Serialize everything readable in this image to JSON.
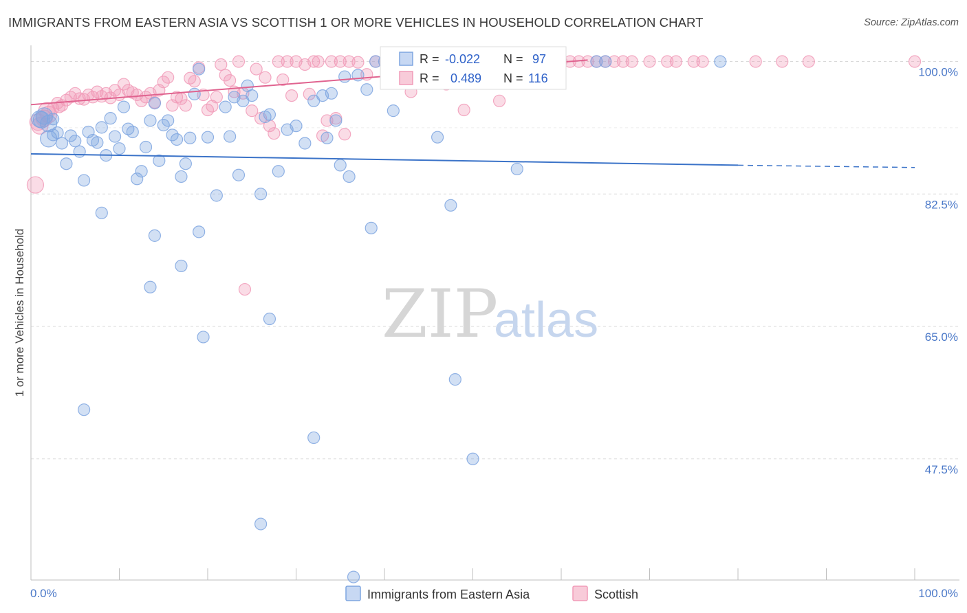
{
  "title": "IMMIGRANTS FROM EASTERN ASIA VS SCOTTISH 1 OR MORE VEHICLES IN HOUSEHOLD CORRELATION CHART",
  "source": "Source: ZipAtlas.com",
  "watermark": {
    "zip": "ZIP",
    "atlas": "atlas"
  },
  "colors": {
    "blue": "#7fa6e0",
    "blue_line": "#3b73c8",
    "pink": "#f19bb8",
    "pink_line": "#e0638f",
    "grid": "#d9d9d9",
    "tick_text": "#4a78c8"
  },
  "stats": {
    "r_label": "R =",
    "n_label": "N =",
    "blue": {
      "r": "-0.022",
      "n": "97"
    },
    "pink": {
      "r": "0.489",
      "n": "116"
    }
  },
  "chart_data": {
    "type": "scatter",
    "title": "IMMIGRANTS FROM EASTERN ASIA VS SCOTTISH 1 OR MORE VEHICLES IN HOUSEHOLD CORRELATION CHART",
    "xlabel": "",
    "ylabel": "1 or more Vehicles in Household",
    "xlim": [
      0,
      100
    ],
    "ylim": [
      31.5,
      102.5
    ],
    "x_tick_labels": [
      "0.0%",
      "100.0%"
    ],
    "y_ticks": [
      100.0,
      82.5,
      65.0,
      47.5
    ],
    "y_tick_labels": [
      "100.0%",
      "82.5%",
      "65.0%",
      "47.5%"
    ],
    "grid": true,
    "legend_position": "bottom-center",
    "series": [
      {
        "name": "Immigrants from Eastern Asia",
        "color": "#7fa6e0",
        "trend": {
          "x0": 0,
          "y0": 87.8,
          "x1": 80,
          "y1": 86.3,
          "dashed_to_x": 100,
          "dashed_to_y": 86.0
        },
        "points": [
          [
            1,
            92.4
          ],
          [
            1.5,
            92.8
          ],
          [
            2,
            91.8
          ],
          [
            2,
            89.8
          ],
          [
            2.5,
            90.3
          ],
          [
            3,
            90.6
          ],
          [
            3.5,
            89.2
          ],
          [
            4,
            86.5
          ],
          [
            4.5,
            90.2
          ],
          [
            5,
            89.5
          ],
          [
            5.5,
            88.1
          ],
          [
            6,
            84.3
          ],
          [
            6.5,
            90.7
          ],
          [
            7,
            89.6
          ],
          [
            7.5,
            89.3
          ],
          [
            8,
            91.3
          ],
          [
            8.5,
            87.6
          ],
          [
            9,
            92.5
          ],
          [
            9.5,
            90.1
          ],
          [
            10,
            88.5
          ],
          [
            10.5,
            94.0
          ],
          [
            11,
            91.1
          ],
          [
            11.5,
            90.7
          ],
          [
            12,
            84.5
          ],
          [
            12.5,
            85.5
          ],
          [
            13,
            88.7
          ],
          [
            13.5,
            92.2
          ],
          [
            14,
            94.5
          ],
          [
            14.5,
            86.9
          ],
          [
            15,
            91.6
          ],
          [
            15.5,
            92.2
          ],
          [
            16,
            90.3
          ],
          [
            16.5,
            89.7
          ],
          [
            17,
            84.8
          ],
          [
            17.5,
            86.5
          ],
          [
            18,
            89.9
          ],
          [
            18.5,
            95.7
          ],
          [
            19,
            99.0
          ],
          [
            20,
            90.0
          ],
          [
            21,
            82.3
          ],
          [
            22,
            94.0
          ],
          [
            22.5,
            90.1
          ],
          [
            23,
            95.3
          ],
          [
            23.5,
            85.0
          ],
          [
            24,
            94.8
          ],
          [
            24.5,
            96.8
          ],
          [
            25,
            95.5
          ],
          [
            26,
            82.5
          ],
          [
            26.5,
            92.7
          ],
          [
            27,
            93.0
          ],
          [
            28,
            85.5
          ],
          [
            29,
            91.0
          ],
          [
            30,
            91.5
          ],
          [
            31,
            89.2
          ],
          [
            32,
            94.8
          ],
          [
            33,
            95.5
          ],
          [
            33.5,
            89.9
          ],
          [
            34,
            95.8
          ],
          [
            34.5,
            92.2
          ],
          [
            35,
            86.3
          ],
          [
            35.5,
            98.0
          ],
          [
            36,
            84.8
          ],
          [
            37,
            98.2
          ],
          [
            38,
            96.3
          ],
          [
            38.5,
            78.0
          ],
          [
            39,
            100.0
          ],
          [
            40,
            100.0
          ],
          [
            41,
            93.5
          ],
          [
            42,
            100.0
          ],
          [
            43,
            100.0
          ],
          [
            44,
            100.0
          ],
          [
            46,
            90.0
          ],
          [
            47,
            98.9
          ],
          [
            47.5,
            81.0
          ],
          [
            50,
            100.0
          ],
          [
            53,
            100.0
          ],
          [
            55,
            85.8
          ],
          [
            65,
            100.0
          ],
          [
            78,
            100.0
          ],
          [
            8,
            80.0
          ],
          [
            14,
            77.0
          ],
          [
            19,
            77.5
          ],
          [
            13.5,
            70.2
          ],
          [
            17,
            73.0
          ],
          [
            27,
            66.0
          ],
          [
            19.5,
            63.6
          ],
          [
            48,
            58.0
          ],
          [
            6,
            54.0
          ],
          [
            32,
            50.3
          ],
          [
            50,
            47.5
          ],
          [
            26,
            38.9
          ],
          [
            36.5,
            31.9
          ],
          [
            44,
            100.0
          ],
          [
            64,
            100.0
          ],
          [
            2.5,
            92.4
          ],
          [
            1.2,
            92.3
          ]
        ]
      },
      {
        "name": "Scottish",
        "color": "#f19bb8",
        "trend": {
          "x0": 0,
          "y0": 94.3,
          "x1": 63,
          "y1": 100.2
        },
        "points": [
          [
            0.5,
            83.7
          ],
          [
            1,
            91.5
          ],
          [
            1.5,
            92.5
          ],
          [
            2,
            93.0
          ],
          [
            2.5,
            93.8
          ],
          [
            3,
            94.5
          ],
          [
            3.5,
            94.2
          ],
          [
            4,
            94.9
          ],
          [
            4.5,
            95.3
          ],
          [
            5,
            95.8
          ],
          [
            5.5,
            95.1
          ],
          [
            6,
            95.0
          ],
          [
            6.5,
            95.6
          ],
          [
            7,
            95.3
          ],
          [
            7.5,
            96.0
          ],
          [
            8,
            95.4
          ],
          [
            8.5,
            95.8
          ],
          [
            9,
            95.2
          ],
          [
            9.5,
            96.2
          ],
          [
            10,
            95.6
          ],
          [
            10.5,
            97.0
          ],
          [
            11,
            96.2
          ],
          [
            11.5,
            95.9
          ],
          [
            12,
            95.6
          ],
          [
            12.5,
            94.8
          ],
          [
            13,
            95.3
          ],
          [
            13.5,
            95.8
          ],
          [
            14,
            94.6
          ],
          [
            14.5,
            96.2
          ],
          [
            15,
            97.3
          ],
          [
            15.5,
            97.9
          ],
          [
            16,
            94.2
          ],
          [
            16.5,
            95.3
          ],
          [
            17,
            95.1
          ],
          [
            17.5,
            94.2
          ],
          [
            18,
            97.8
          ],
          [
            18.5,
            97.4
          ],
          [
            19,
            99.2
          ],
          [
            19.5,
            95.6
          ],
          [
            20,
            93.6
          ],
          [
            20.5,
            94.1
          ],
          [
            21,
            95.3
          ],
          [
            21.5,
            99.6
          ],
          [
            22,
            98.2
          ],
          [
            22.5,
            97.5
          ],
          [
            23,
            96.0
          ],
          [
            23.5,
            100.0
          ],
          [
            24,
            95.8
          ],
          [
            25,
            93.5
          ],
          [
            25.5,
            99.0
          ],
          [
            26,
            92.5
          ],
          [
            26.5,
            97.9
          ],
          [
            27,
            91.5
          ],
          [
            27.5,
            90.5
          ],
          [
            28,
            100.0
          ],
          [
            28.5,
            97.6
          ],
          [
            29,
            100.0
          ],
          [
            29.5,
            95.5
          ],
          [
            30,
            100.0
          ],
          [
            31,
            99.6
          ],
          [
            31.5,
            95.7
          ],
          [
            32,
            100.0
          ],
          [
            32.5,
            100.0
          ],
          [
            33,
            90.2
          ],
          [
            33.5,
            92.2
          ],
          [
            34,
            100.0
          ],
          [
            34.5,
            92.5
          ],
          [
            35,
            100.0
          ],
          [
            35.5,
            90.4
          ],
          [
            36,
            100.0
          ],
          [
            37,
            99.9
          ],
          [
            38,
            98.3
          ],
          [
            39,
            100.0
          ],
          [
            40,
            100.0
          ],
          [
            41,
            100.0
          ],
          [
            42,
            100.0
          ],
          [
            43,
            96.0
          ],
          [
            44,
            100.0
          ],
          [
            45,
            100.0
          ],
          [
            46,
            100.0
          ],
          [
            47,
            97.0
          ],
          [
            48,
            100.0
          ],
          [
            49,
            100.0
          ],
          [
            50,
            100.0
          ],
          [
            51,
            100.0
          ],
          [
            52,
            100.0
          ],
          [
            53,
            100.0
          ],
          [
            54,
            100.0
          ],
          [
            55,
            100.0
          ],
          [
            56,
            100.0
          ],
          [
            57,
            100.0
          ],
          [
            58,
            100.0
          ],
          [
            59,
            100.0
          ],
          [
            60,
            100.0
          ],
          [
            61,
            100.0
          ],
          [
            62,
            100.0
          ],
          [
            63,
            100.0
          ],
          [
            64,
            100.0
          ],
          [
            65,
            100.0
          ],
          [
            66,
            100.0
          ],
          [
            67,
            100.0
          ],
          [
            68,
            100.0
          ],
          [
            70,
            100.0
          ],
          [
            72,
            100.0
          ],
          [
            73,
            100.0
          ],
          [
            75,
            100.0
          ],
          [
            76,
            100.0
          ],
          [
            82,
            100.0
          ],
          [
            85,
            100.0
          ],
          [
            88,
            100.0
          ],
          [
            100,
            100.0
          ],
          [
            24.2,
            69.9
          ],
          [
            49,
            93.6
          ],
          [
            53,
            94.8
          ],
          [
            0.8,
            92.0
          ],
          [
            1.8,
            93.5
          ],
          [
            3.2,
            94.0
          ]
        ]
      }
    ]
  }
}
